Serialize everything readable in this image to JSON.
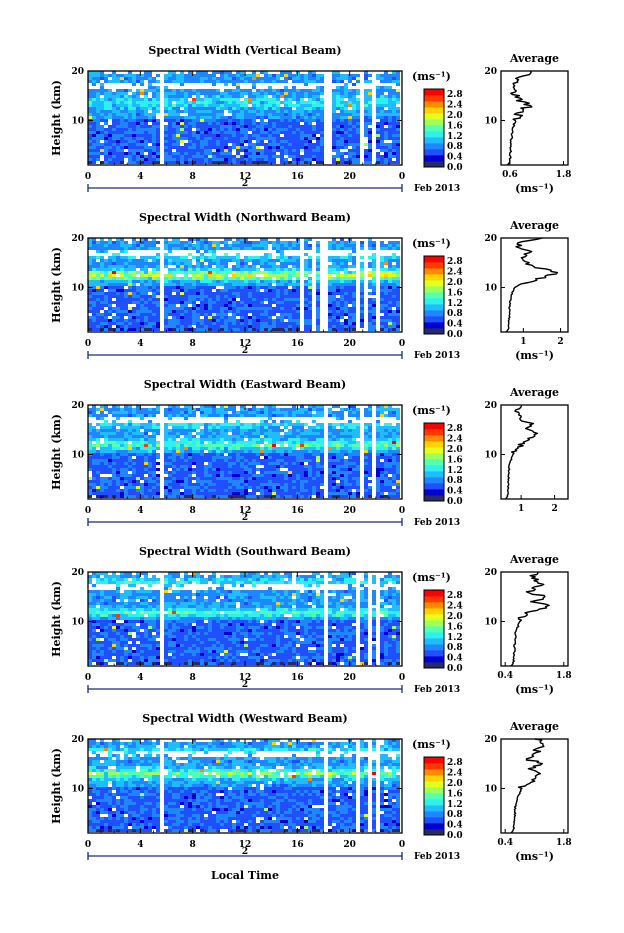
{
  "figure": {
    "x_axis_label": "Local Time",
    "colors": [
      "#262b66",
      "#0000cf",
      "#1f4fff",
      "#1f86ff",
      "#1fbdff",
      "#2ef0ee",
      "#55ffb2",
      "#9dff5e",
      "#e3ff1e",
      "#ffd200",
      "#ff8a00",
      "#ff3a00",
      "#ff0000"
    ]
  },
  "chart_data": [
    {
      "type": "heatmap",
      "title": "Spectral Width (Vertical Beam)",
      "ylabel": "Height (km)",
      "yticks": [
        "20",
        "10"
      ],
      "xticks": [
        "0",
        "4",
        "8",
        "12",
        "16",
        "20",
        "0"
      ],
      "date_day": "2",
      "date_label": "Feb 2013",
      "colorbar_unit": "(ms⁻¹)",
      "colorbar_ticks": [
        "2.8",
        "2.4",
        "2.0",
        "1.6",
        "1.2",
        "0.8",
        "0.4",
        "0.0"
      ],
      "profile_title": "Average",
      "profile_yticks": [
        "20",
        "10"
      ],
      "profile_xticks": [
        "0.6",
        "1.8"
      ],
      "profile_xlabel": "(ms⁻¹)",
      "profile_xlim": [
        0.4,
        1.9
      ],
      "profile": {
        "height_km": [
          2,
          4,
          6,
          8,
          10,
          11,
          12,
          13,
          14,
          15,
          16,
          17,
          18,
          19,
          20
        ],
        "width_ms": [
          0.6,
          0.62,
          0.63,
          0.65,
          0.72,
          0.78,
          0.85,
          1.05,
          0.82,
          0.72,
          0.68,
          0.65,
          0.72,
          0.9,
          1.1
        ]
      }
    },
    {
      "type": "heatmap",
      "title": "Spectral Width (Northward Beam)",
      "ylabel": "Height (km)",
      "yticks": [
        "20",
        "10"
      ],
      "xticks": [
        "0",
        "4",
        "8",
        "12",
        "16",
        "20",
        "0"
      ],
      "date_day": "2",
      "date_label": "Feb 2013",
      "colorbar_unit": "(ms⁻¹)",
      "colorbar_ticks": [
        "2.8",
        "2.4",
        "2.0",
        "1.6",
        "1.2",
        "0.8",
        "0.4",
        "0.0"
      ],
      "profile_title": "Average",
      "profile_yticks": [
        "20",
        "10"
      ],
      "profile_xticks": [
        "1",
        "2"
      ],
      "profile_xlabel": "(ms⁻¹)",
      "profile_xlim": [
        0.4,
        2.2
      ],
      "profile": {
        "height_km": [
          2,
          4,
          6,
          8,
          9,
          10,
          11,
          12,
          13,
          14,
          15,
          16,
          17,
          18,
          19,
          20
        ],
        "width_ms": [
          0.6,
          0.62,
          0.63,
          0.66,
          0.7,
          0.78,
          1.1,
          1.5,
          1.9,
          1.4,
          1.1,
          0.9,
          1.2,
          0.9,
          0.8,
          1.5
        ]
      }
    },
    {
      "type": "heatmap",
      "title": "Spectral Width (Eastward Beam)",
      "ylabel": "Height (km)",
      "yticks": [
        "20",
        "10"
      ],
      "xticks": [
        "0",
        "4",
        "8",
        "12",
        "16",
        "20",
        "0"
      ],
      "date_day": "2",
      "date_label": "Feb 2013",
      "colorbar_unit": "(ms⁻¹)",
      "colorbar_ticks": [
        "2.8",
        "2.4",
        "2.0",
        "1.6",
        "1.2",
        "0.8",
        "0.4",
        "0.0"
      ],
      "profile_title": "Average",
      "profile_yticks": [
        "20",
        "10"
      ],
      "profile_xticks": [
        "1",
        "2"
      ],
      "profile_xlabel": "",
      "profile_xlim": [
        0.4,
        2.4
      ],
      "profile": {
        "height_km": [
          2,
          4,
          6,
          8,
          10,
          11,
          12,
          13,
          14,
          15,
          16,
          17,
          18,
          19,
          20
        ],
        "width_ms": [
          0.6,
          0.62,
          0.63,
          0.65,
          0.75,
          0.85,
          1.0,
          1.25,
          1.45,
          1.2,
          1.35,
          1.0,
          0.9,
          0.8,
          1.1
        ]
      }
    },
    {
      "type": "heatmap",
      "title": "Spectral Width (Southward Beam)",
      "ylabel": "Height (km)",
      "yticks": [
        "20",
        "10"
      ],
      "xticks": [
        "0",
        "4",
        "8",
        "12",
        "16",
        "20",
        "0"
      ],
      "date_day": "2",
      "date_label": "Feb 2013",
      "colorbar_unit": "(ms⁻¹)",
      "colorbar_ticks": [
        "2.8",
        "2.4",
        "2.0",
        "1.6",
        "1.2",
        "0.8",
        "0.4",
        "0.0"
      ],
      "profile_title": "Average",
      "profile_yticks": [
        "20",
        "10"
      ],
      "profile_xticks": [
        "0.4",
        "1.8"
      ],
      "profile_xlabel": "(ms⁻¹)",
      "profile_xlim": [
        0.3,
        1.9
      ],
      "profile": {
        "height_km": [
          2,
          4,
          6,
          8,
          10,
          11,
          12,
          13,
          14,
          15,
          16,
          17,
          18,
          19,
          20
        ],
        "width_ms": [
          0.6,
          0.62,
          0.63,
          0.66,
          0.75,
          0.85,
          1.0,
          1.45,
          1.1,
          1.3,
          1.0,
          1.2,
          1.25,
          1.05,
          1.1
        ]
      }
    },
    {
      "type": "heatmap",
      "title": "Spectral Width (Westward Beam)",
      "ylabel": "Height (km)",
      "yticks": [
        "20",
        "10"
      ],
      "xticks": [
        "0",
        "4",
        "8",
        "12",
        "16",
        "20",
        "0"
      ],
      "date_day": "2",
      "date_label": "Feb 2013",
      "colorbar_unit": "(ms⁻¹)",
      "colorbar_ticks": [
        "2.8",
        "2.4",
        "2.0",
        "1.6",
        "1.2",
        "0.8",
        "0.4",
        "0.0"
      ],
      "profile_title": "Average",
      "profile_yticks": [
        "20",
        "10"
      ],
      "profile_xticks": [
        "0.4",
        "1.8"
      ],
      "profile_xlabel": "(ms⁻¹)",
      "profile_xlim": [
        0.3,
        1.9
      ],
      "profile": {
        "height_km": [
          2,
          4,
          6,
          8,
          10,
          11,
          12,
          13,
          14,
          15,
          16,
          17,
          18,
          19,
          20
        ],
        "width_ms": [
          0.6,
          0.62,
          0.64,
          0.68,
          0.8,
          0.9,
          1.1,
          1.25,
          1.05,
          1.3,
          0.9,
          1.1,
          1.2,
          1.4,
          1.2
        ]
      }
    }
  ]
}
